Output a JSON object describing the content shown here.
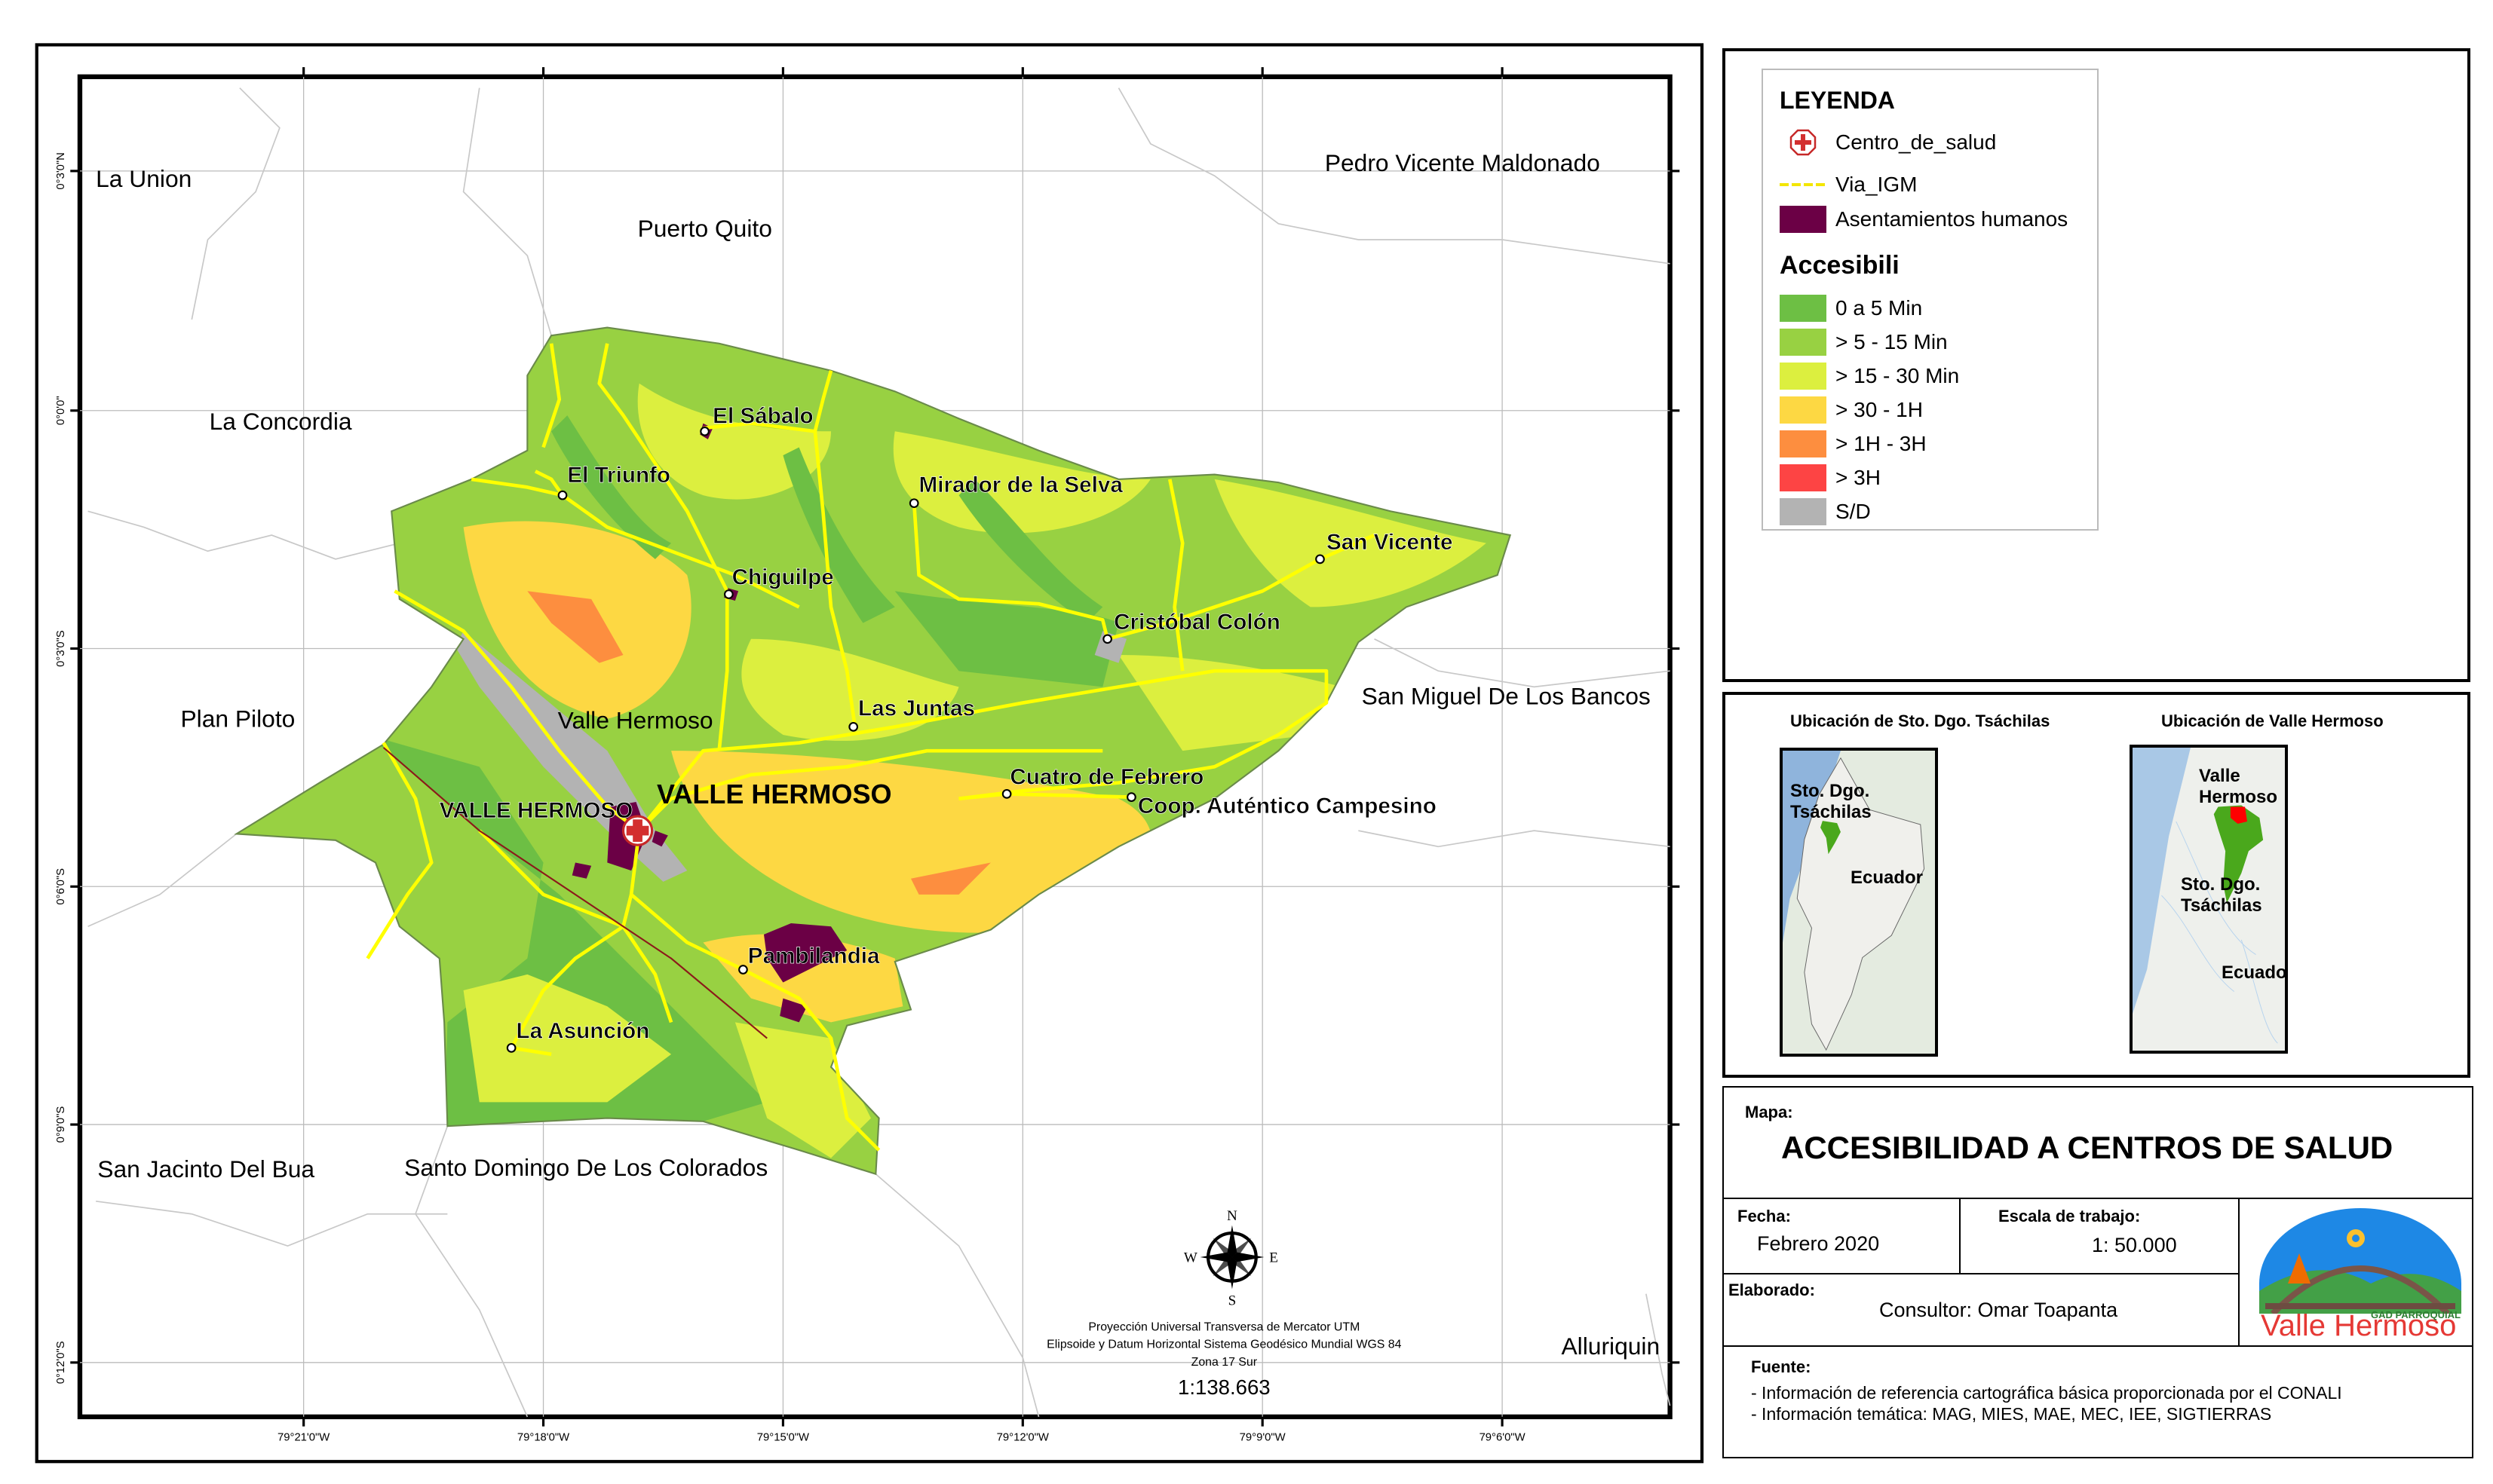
{
  "map": {
    "neighbors": [
      "La Union",
      "Pedro Vicente Maldonado",
      "Puerto Quito",
      "La Concordia",
      "Plan Piloto",
      "San Miguel De Los Bancos",
      "San Jacinto Del Bua",
      "Santo Domingo De Los Colorados",
      "Alluriquin"
    ],
    "places": [
      "El Sábalo",
      "El Triunfo",
      "Mirador de la Selva",
      "San Vicente",
      "Chiguilpe",
      "Cristóbal Colón",
      "Las Juntas",
      "Cuatro de Febrero",
      "Coop. Auténtico Campesino",
      "Pambilandia",
      "La Asunción",
      "VALLE HERMOSO"
    ],
    "parish_labels": [
      "Valle Hermoso",
      "VALLE HERMOSO"
    ],
    "lat_labels": [
      "0°3'0\"N",
      "0°0'0\"",
      "0°3'0\"S",
      "0°6'0\"S",
      "0°9'0\"S",
      "0°12'0\"S"
    ],
    "lon_labels": [
      "79°21'0\"W",
      "79°18'0\"W",
      "79°15'0\"W",
      "79°12'0\"W",
      "79°9'0\"W",
      "79°6'0\"W"
    ],
    "compass": {
      "n": "N",
      "s": "S",
      "e": "E",
      "w": "W"
    },
    "projection": [
      "Proyección Universal Transversa de Mercator UTM",
      "Elipsoide y Datum Horizontal Sistema Geodésico Mundial WGS 84",
      "Zona 17 Sur"
    ],
    "scale": "1:138.663"
  },
  "legend": {
    "title": "LEYENDA",
    "items": [
      {
        "label": "Centro_de_salud",
        "icon": "health-center-cross-icon",
        "color": "#d32f2f"
      },
      {
        "label": "Via_IGM",
        "icon": "road-line",
        "color": "#ffff00"
      },
      {
        "label": "Asentamientos humanos",
        "color": "#6b0045"
      }
    ],
    "accesibilidad_title": "Accesibili",
    "classes": [
      {
        "label": "0 a 5 Min",
        "color": "#6dbf44"
      },
      {
        "label": "> 5 - 15 Min",
        "color": "#98d142"
      },
      {
        "label": "> 15 - 30 Min",
        "color": "#dcef3f"
      },
      {
        "label": "> 30 - 1H",
        "color": "#fdd843"
      },
      {
        "label": "> 1H - 3H",
        "color": "#fd8e3f"
      },
      {
        "label": "> 3H",
        "color": "#fd4444"
      },
      {
        "label": "S/D",
        "color": "#b3b3b3"
      }
    ]
  },
  "insets": [
    {
      "title": "Ubicación de Sto. Dgo. Tsáchilas",
      "labels": [
        "Sto. Dgo. Tsáchilas",
        "Ecuador"
      ]
    },
    {
      "title": "Ubicación de Valle Hermoso",
      "labels": [
        "Valle Hermoso",
        "Sto. Dgo. Tsáchilas",
        "Ecuador"
      ]
    }
  ],
  "titleblock": {
    "map_label": "Mapa:",
    "title": "ACCESIBILIDAD A CENTROS DE SALUD",
    "fecha_label": "Fecha:",
    "fecha": "Febrero 2020",
    "escala_label": "Escala de trabajo:",
    "escala": "1: 50.000",
    "elaborado_label": "Elaborado:",
    "elaborado": "Consultor: Omar Toapanta",
    "fuente_label": "Fuente:",
    "fuentes": [
      "- Información de referencia cartográfica básica proporcionada por el CONALI",
      "- Información temática: MAG, MIES, MAE, MEC, IEE, SIGTIERRAS"
    ],
    "logo_text": "Valle Hermoso",
    "logo_sub": "GAD PARROQUIAL"
  }
}
